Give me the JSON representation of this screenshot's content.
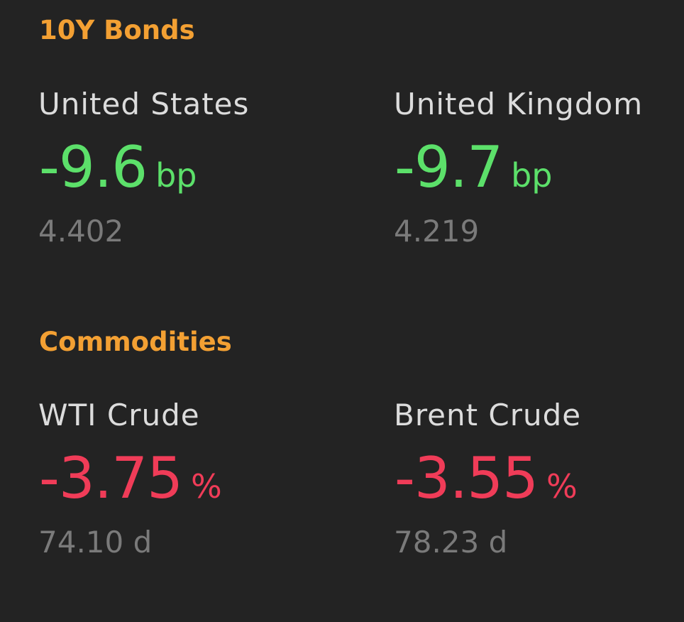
{
  "sections": [
    {
      "title": "10Y Bonds",
      "items": [
        {
          "name": "United States",
          "change": "-9.6",
          "unit": "bp",
          "price": "4.402"
        },
        {
          "name": "United Kingdom",
          "change": "-9.7",
          "unit": "bp",
          "price": "4.219"
        }
      ]
    },
    {
      "title": "Commodities",
      "items": [
        {
          "name": "WTI Crude",
          "change": "-3.75",
          "unit": "%",
          "price": "74.10 d"
        },
        {
          "name": "Brent Crude",
          "change": "-3.55",
          "unit": "%",
          "price": "78.23 d"
        }
      ]
    }
  ]
}
